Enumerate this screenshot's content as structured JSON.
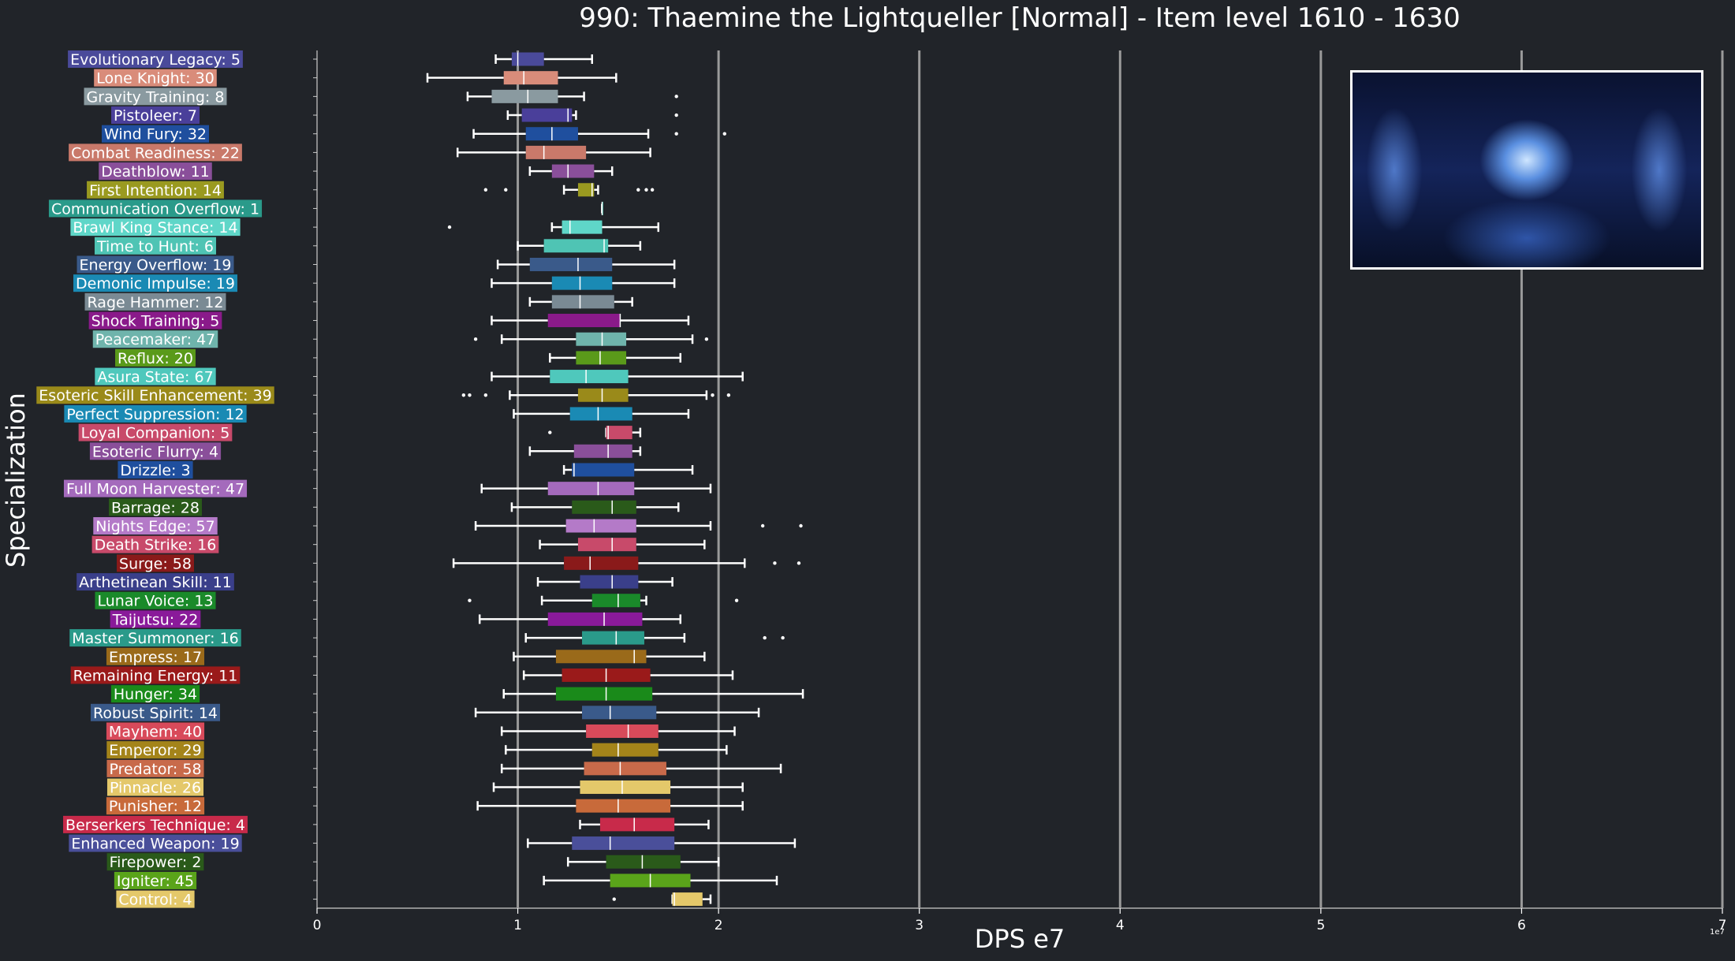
{
  "header": {
    "title": "990: Thaemine the Lightqueller [Normal] - Item level 1610 - 1630"
  },
  "theme": {
    "background": "#212429",
    "plot_background": "#212429",
    "text": "#ffffff",
    "gridline": "#9a9a9a"
  },
  "chart_data": {
    "type": "box",
    "title": "990: Thaemine the Lightqueller [Normal] - Item level 1610 - 1630",
    "xlabel": "DPS e7",
    "ylabel": "Specialization",
    "xlim": [
      0,
      7
    ],
    "x_ticks": [
      0,
      1,
      2,
      3,
      4,
      5,
      6,
      7
    ],
    "x_scale_note": "1e7",
    "grid": "vertical lines at x ticks",
    "inset_image": "dark blue boss artwork, top-right",
    "categories": [
      {
        "label": "Evolutionary Legacy: 5",
        "color": "#4a4a9a",
        "min": 0.89,
        "q1": 0.97,
        "median": 1.0,
        "q3": 1.13,
        "max": 1.37,
        "outliers": []
      },
      {
        "label": "Lone Knight: 30",
        "color": "#d98c7a",
        "min": 0.55,
        "q1": 0.93,
        "median": 1.03,
        "q3": 1.2,
        "max": 1.49,
        "outliers": []
      },
      {
        "label": "Gravity Training: 8",
        "color": "#8a9aa0",
        "min": 0.75,
        "q1": 0.87,
        "median": 1.05,
        "q3": 1.2,
        "max": 1.33,
        "outliers": [
          1.79
        ]
      },
      {
        "label": "Pistoleer: 7",
        "color": "#4a3f9a",
        "min": 0.95,
        "q1": 1.02,
        "median": 1.25,
        "q3": 1.27,
        "max": 1.29,
        "outliers": [
          1.79
        ]
      },
      {
        "label": "Wind Fury: 32",
        "color": "#1f4f9e",
        "min": 0.78,
        "q1": 1.04,
        "median": 1.17,
        "q3": 1.3,
        "max": 1.65,
        "outliers": [
          1.79,
          2.03
        ]
      },
      {
        "label": "Combat Readiness: 22",
        "color": "#c9796a",
        "min": 0.7,
        "q1": 1.04,
        "median": 1.13,
        "q3": 1.34,
        "max": 1.66,
        "outliers": []
      },
      {
        "label": "Deathblow: 11",
        "color": "#8a4f9a",
        "min": 1.06,
        "q1": 1.17,
        "median": 1.25,
        "q3": 1.38,
        "max": 1.47,
        "outliers": []
      },
      {
        "label": "First Intention: 14",
        "color": "#9a9a20",
        "min": 1.23,
        "q1": 1.3,
        "median": 1.37,
        "q3": 1.38,
        "max": 1.4,
        "outliers": [
          0.84,
          0.94,
          1.6,
          1.64,
          1.67
        ]
      },
      {
        "label": "Communication Overflow: 1",
        "color": "#2a9a8a",
        "min": 1.42,
        "q1": 1.42,
        "median": 1.42,
        "q3": 1.42,
        "max": 1.42,
        "outliers": []
      },
      {
        "label": "Brawl King Stance: 14",
        "color": "#5fd6c8",
        "min": 1.17,
        "q1": 1.22,
        "median": 1.26,
        "q3": 1.42,
        "max": 1.7,
        "outliers": [
          0.66
        ]
      },
      {
        "label": "Time to Hunt: 6",
        "color": "#4fc4b4",
        "min": 1.0,
        "q1": 1.13,
        "median": 1.43,
        "q3": 1.45,
        "max": 1.61,
        "outliers": []
      },
      {
        "label": "Energy Overflow: 19",
        "color": "#3a5a8a",
        "min": 0.9,
        "q1": 1.06,
        "median": 1.3,
        "q3": 1.47,
        "max": 1.78,
        "outliers": []
      },
      {
        "label": "Demonic Impulse: 19",
        "color": "#1a8ab4",
        "min": 0.87,
        "q1": 1.17,
        "median": 1.31,
        "q3": 1.47,
        "max": 1.78,
        "outliers": []
      },
      {
        "label": "Rage Hammer: 12",
        "color": "#7a8a94",
        "min": 1.06,
        "q1": 1.17,
        "median": 1.31,
        "q3": 1.48,
        "max": 1.57,
        "outliers": []
      },
      {
        "label": "Shock Training: 5",
        "color": "#8a1a8a",
        "min": 0.87,
        "q1": 1.15,
        "median": 1.51,
        "q3": 1.51,
        "max": 1.85,
        "outliers": []
      },
      {
        "label": "Peacemaker: 47",
        "color": "#6fb4ac",
        "min": 0.92,
        "q1": 1.29,
        "median": 1.42,
        "q3": 1.54,
        "max": 1.87,
        "outliers": [
          0.79,
          1.94
        ]
      },
      {
        "label": "Reflux: 20",
        "color": "#5a9a1a",
        "min": 1.16,
        "q1": 1.29,
        "median": 1.41,
        "q3": 1.54,
        "max": 1.81,
        "outliers": []
      },
      {
        "label": "Asura State: 67",
        "color": "#4fc8bc",
        "min": 0.87,
        "q1": 1.16,
        "median": 1.34,
        "q3": 1.55,
        "max": 2.12,
        "outliers": []
      },
      {
        "label": "Esoteric Skill Enhancement: 39",
        "color": "#9a8a1a",
        "min": 0.96,
        "q1": 1.3,
        "median": 1.42,
        "q3": 1.55,
        "max": 1.94,
        "outliers": [
          0.73,
          0.76,
          0.84,
          1.97,
          2.05
        ]
      },
      {
        "label": "Perfect Suppression: 12",
        "color": "#1a8ab4",
        "min": 0.98,
        "q1": 1.26,
        "median": 1.4,
        "q3": 1.57,
        "max": 1.85,
        "outliers": []
      },
      {
        "label": "Loyal Companion: 5",
        "color": "#c84a6a",
        "min": 1.44,
        "q1": 1.44,
        "median": 1.45,
        "q3": 1.57,
        "max": 1.61,
        "outliers": [
          1.16
        ]
      },
      {
        "label": "Esoteric Flurry: 4",
        "color": "#8a4f9a",
        "min": 1.06,
        "q1": 1.28,
        "median": 1.45,
        "q3": 1.57,
        "max": 1.61,
        "outliers": []
      },
      {
        "label": "Drizzle: 3",
        "color": "#1f4f9e",
        "min": 1.23,
        "q1": 1.27,
        "median": 1.28,
        "q3": 1.58,
        "max": 1.87,
        "outliers": []
      },
      {
        "label": "Full Moon Harvester: 47",
        "color": "#a46abc",
        "min": 0.82,
        "q1": 1.15,
        "median": 1.4,
        "q3": 1.58,
        "max": 1.96,
        "outliers": []
      },
      {
        "label": "Barrage: 28",
        "color": "#2a5a1a",
        "min": 0.97,
        "q1": 1.27,
        "median": 1.47,
        "q3": 1.59,
        "max": 1.8,
        "outliers": []
      },
      {
        "label": "Nights Edge: 57",
        "color": "#b47ac8",
        "min": 0.79,
        "q1": 1.24,
        "median": 1.38,
        "q3": 1.59,
        "max": 1.96,
        "outliers": [
          2.22,
          2.41
        ]
      },
      {
        "label": "Death Strike: 16",
        "color": "#c84a6a",
        "min": 1.11,
        "q1": 1.3,
        "median": 1.47,
        "q3": 1.59,
        "max": 1.93,
        "outliers": []
      },
      {
        "label": "Surge: 58",
        "color": "#8a1a1a",
        "min": 0.68,
        "q1": 1.23,
        "median": 1.36,
        "q3": 1.6,
        "max": 2.13,
        "outliers": [
          2.28,
          2.4
        ]
      },
      {
        "label": "Arthetinean Skill: 11",
        "color": "#3a3f8a",
        "min": 1.1,
        "q1": 1.31,
        "median": 1.47,
        "q3": 1.6,
        "max": 1.77,
        "outliers": []
      },
      {
        "label": "Lunar Voice: 13",
        "color": "#1a8a2a",
        "min": 1.12,
        "q1": 1.37,
        "median": 1.5,
        "q3": 1.61,
        "max": 1.64,
        "outliers": [
          0.76,
          2.09
        ]
      },
      {
        "label": "Taijutsu: 22",
        "color": "#8a1a9a",
        "min": 0.81,
        "q1": 1.15,
        "median": 1.43,
        "q3": 1.62,
        "max": 1.81,
        "outliers": []
      },
      {
        "label": "Master Summoner: 16",
        "color": "#2a9a8a",
        "min": 1.04,
        "q1": 1.32,
        "median": 1.49,
        "q3": 1.63,
        "max": 1.83,
        "outliers": [
          2.23,
          2.32
        ]
      },
      {
        "label": "Empress: 17",
        "color": "#9a6a1a",
        "min": 0.98,
        "q1": 1.19,
        "median": 1.58,
        "q3": 1.64,
        "max": 1.93,
        "outliers": []
      },
      {
        "label": "Remaining Energy: 11",
        "color": "#9a1a1a",
        "min": 1.03,
        "q1": 1.22,
        "median": 1.44,
        "q3": 1.66,
        "max": 2.07,
        "outliers": []
      },
      {
        "label": "Hunger: 34",
        "color": "#1a8a1a",
        "min": 0.93,
        "q1": 1.19,
        "median": 1.44,
        "q3": 1.67,
        "max": 2.42,
        "outliers": []
      },
      {
        "label": "Robust Spirit: 14",
        "color": "#3a5a8a",
        "min": 0.79,
        "q1": 1.32,
        "median": 1.46,
        "q3": 1.69,
        "max": 2.2,
        "outliers": []
      },
      {
        "label": "Mayhem: 40",
        "color": "#d84a5a",
        "min": 0.92,
        "q1": 1.34,
        "median": 1.55,
        "q3": 1.7,
        "max": 2.08,
        "outliers": []
      },
      {
        "label": "Emperor: 29",
        "color": "#a4841a",
        "min": 0.94,
        "q1": 1.37,
        "median": 1.5,
        "q3": 1.7,
        "max": 2.04,
        "outliers": []
      },
      {
        "label": "Predator: 58",
        "color": "#c86a4a",
        "min": 0.92,
        "q1": 1.33,
        "median": 1.51,
        "q3": 1.74,
        "max": 2.31,
        "outliers": []
      },
      {
        "label": "Pinnacle: 26",
        "color": "#e4c86a",
        "min": 0.88,
        "q1": 1.31,
        "median": 1.52,
        "q3": 1.76,
        "max": 2.12,
        "outliers": []
      },
      {
        "label": "Punisher: 12",
        "color": "#c86a3a",
        "min": 0.8,
        "q1": 1.29,
        "median": 1.5,
        "q3": 1.76,
        "max": 2.12,
        "outliers": []
      },
      {
        "label": "Berserkers Technique: 4",
        "color": "#c82a4a",
        "min": 1.31,
        "q1": 1.41,
        "median": 1.58,
        "q3": 1.78,
        "max": 1.95,
        "outliers": []
      },
      {
        "label": "Enhanced Weapon: 19",
        "color": "#4a4f9a",
        "min": 1.05,
        "q1": 1.27,
        "median": 1.46,
        "q3": 1.78,
        "max": 2.38,
        "outliers": []
      },
      {
        "label": "Firepower: 2",
        "color": "#2a5a1a",
        "min": 1.25,
        "q1": 1.44,
        "median": 1.62,
        "q3": 1.81,
        "max": 2.0,
        "outliers": []
      },
      {
        "label": "Igniter: 45",
        "color": "#5aa41a",
        "min": 1.13,
        "q1": 1.46,
        "median": 1.66,
        "q3": 1.86,
        "max": 2.29,
        "outliers": []
      },
      {
        "label": "Control: 4",
        "color": "#e4c86a",
        "min": 1.77,
        "q1": 1.77,
        "median": 1.78,
        "q3": 1.92,
        "max": 1.96,
        "outliers": [
          1.48
        ]
      }
    ]
  }
}
